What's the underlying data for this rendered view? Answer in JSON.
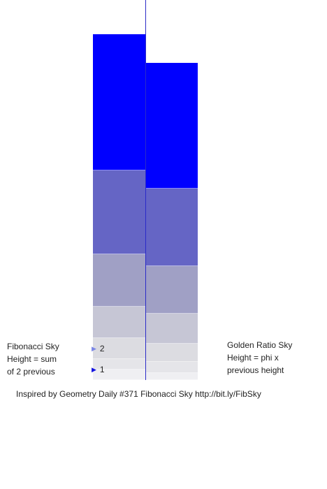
{
  "fibonacci": {
    "label_line1": "Fibonacci Sky",
    "label_line2": "Height = sum",
    "label_line3": "of 2 previous",
    "markers": [
      {
        "label": "2",
        "color": "#7c88e6"
      },
      {
        "label": "1",
        "color": "#1414e0"
      }
    ],
    "band_values": [
      1,
      1,
      2,
      3,
      5,
      8,
      13
    ],
    "band_colors": [
      "#efeff2",
      "#e5e5e9",
      "#dcdce1",
      "#c6c6d5",
      "#a0a0c5",
      "#6565c5",
      "#0000ff"
    ]
  },
  "golden": {
    "label_line1": "Golden Ratio Sky",
    "label_line2": "Height = phi x",
    "label_line3": "previous height",
    "phi": 1.618,
    "band_count": 7,
    "band_colors": [
      "#efeff2",
      "#e5e5e9",
      "#dcdce1",
      "#c6c6d5",
      "#a0a0c5",
      "#6565c5",
      "#0000ff"
    ]
  },
  "credit": "Inspired by Geometry Daily #371 Fibonacci Sky http://bit.ly/FibSky"
}
